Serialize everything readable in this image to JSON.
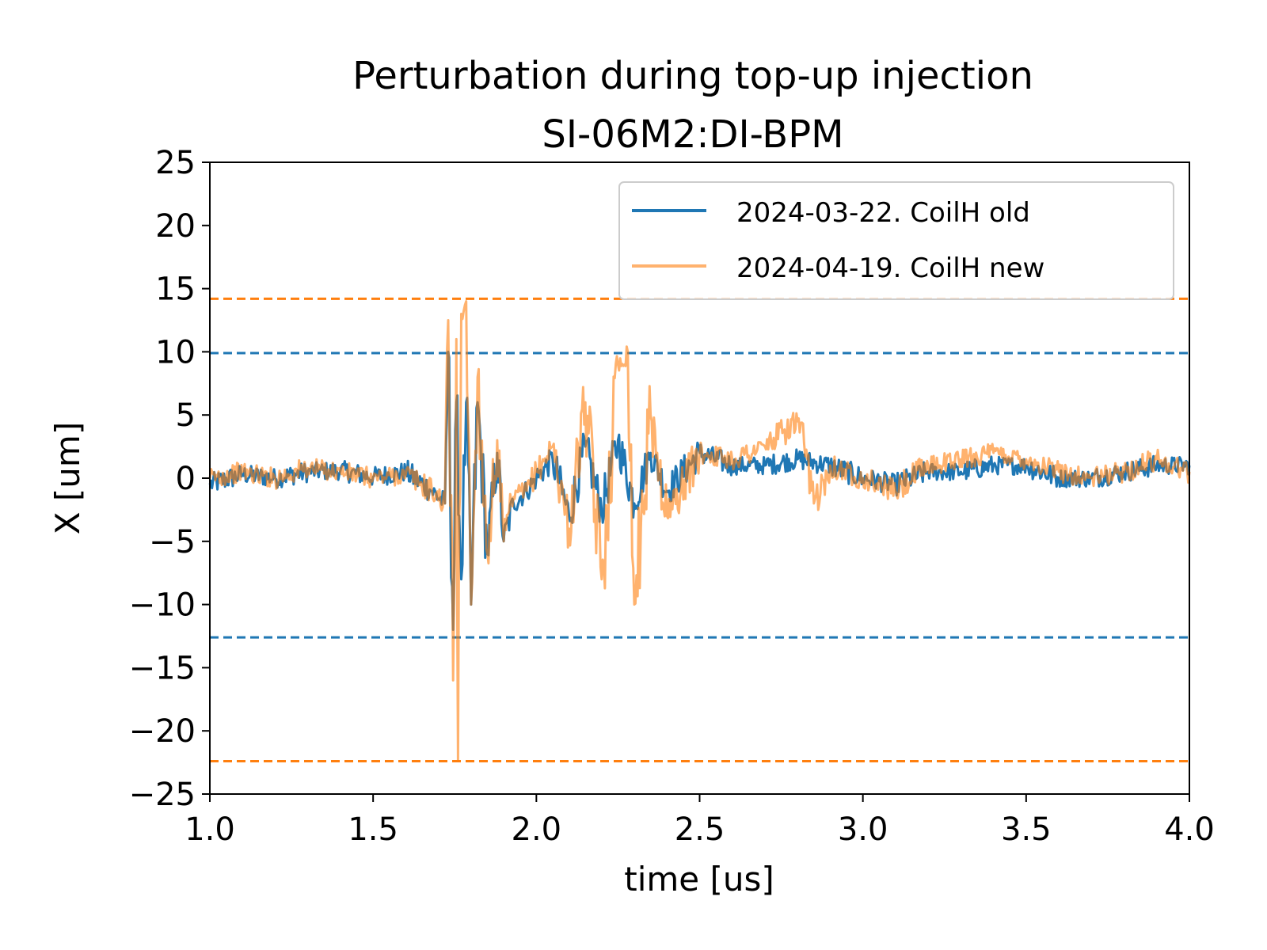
{
  "chart_data": {
    "type": "line",
    "title": "Perturbation during top-up injection",
    "subtitle": "SI-06M2:DI-BPM",
    "xlabel": "time [us]",
    "ylabel": "X [um]",
    "xlim": [
      1.0,
      4.0
    ],
    "ylim": [
      -25,
      25
    ],
    "xticks": [
      "1.0",
      "1.5",
      "2.0",
      "2.5",
      "3.0",
      "3.5",
      "4.0"
    ],
    "yticks": [
      "25",
      "20",
      "15",
      "10",
      "5",
      "0",
      "−5",
      "−10",
      "−15",
      "−20",
      "−25"
    ],
    "grid": false,
    "legend_position": "top-right",
    "series": [
      {
        "name": "2024-03-22. CoilH old",
        "color": "#1f77b4",
        "opacity": 1.0,
        "x": [
          1.0,
          1.1,
          1.2,
          1.3,
          1.4,
          1.5,
          1.6,
          1.68,
          1.72,
          1.73,
          1.745,
          1.755,
          1.77,
          1.785,
          1.8,
          1.82,
          1.85,
          1.88,
          1.9,
          1.93,
          1.97,
          2.0,
          2.05,
          2.1,
          2.15,
          2.2,
          2.25,
          2.3,
          2.35,
          2.4,
          2.5,
          2.6,
          2.7,
          2.8,
          2.9,
          3.0,
          3.1,
          3.2,
          3.3,
          3.4,
          3.5,
          3.6,
          3.7,
          3.8,
          3.9,
          4.0
        ],
        "y": [
          -0.5,
          0.3,
          0.0,
          0.5,
          0.6,
          0.1,
          0.5,
          -1.0,
          -2.0,
          10.0,
          -12.0,
          6.0,
          -8.0,
          6.0,
          -10.0,
          6.0,
          -6.0,
          2.0,
          -5.0,
          -2.0,
          -1.0,
          0.0,
          1.5,
          -3.0,
          2.5,
          -2.5,
          3.0,
          -2.0,
          2.0,
          -1.0,
          2.0,
          1.0,
          1.0,
          1.5,
          1.0,
          0.0,
          -0.5,
          0.5,
          0.5,
          1.0,
          1.0,
          0.0,
          0.0,
          0.5,
          1.0,
          1.0
        ],
        "detected_limits": [
          9.9,
          -12.6
        ]
      },
      {
        "name": "2024-04-19. CoilH new",
        "color": "#ff7f0e",
        "opacity": 0.6,
        "x": [
          1.0,
          1.1,
          1.2,
          1.3,
          1.4,
          1.5,
          1.6,
          1.68,
          1.72,
          1.73,
          1.745,
          1.755,
          1.76,
          1.77,
          1.785,
          1.8,
          1.82,
          1.85,
          1.88,
          1.9,
          1.93,
          1.97,
          2.0,
          2.05,
          2.1,
          2.15,
          2.2,
          2.25,
          2.28,
          2.3,
          2.35,
          2.4,
          2.5,
          2.6,
          2.7,
          2.8,
          2.85,
          2.9,
          3.0,
          3.1,
          3.2,
          3.3,
          3.4,
          3.5,
          3.6,
          3.7,
          3.8,
          3.9,
          4.0
        ],
        "y": [
          0.0,
          0.5,
          0.0,
          0.8,
          0.5,
          0.0,
          0.3,
          -1.0,
          -2.0,
          12.5,
          -16.0,
          11.0,
          -22.4,
          13.0,
          14.0,
          -10.0,
          8.0,
          -6.0,
          3.0,
          -5.0,
          -1.5,
          -1.0,
          0.5,
          2.5,
          -4.0,
          6.0,
          -8.0,
          9.0,
          10.0,
          -10.0,
          5.0,
          -3.0,
          2.0,
          1.5,
          2.5,
          4.5,
          -2.0,
          1.0,
          0.0,
          -1.0,
          1.0,
          1.5,
          2.0,
          1.5,
          0.5,
          0.0,
          0.5,
          1.5,
          0.5
        ],
        "detected_limits": [
          14.2,
          -22.4
        ]
      }
    ]
  }
}
